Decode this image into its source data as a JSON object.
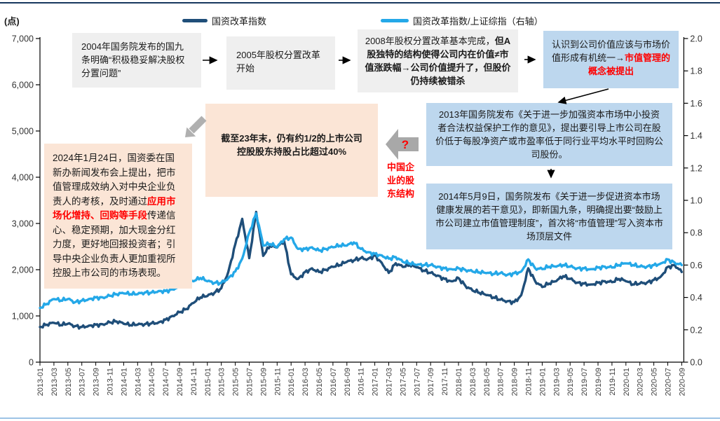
{
  "figure": {
    "unit_label": "(点)",
    "colors": {
      "dark_series": "#1f4e79",
      "light_series": "#24a8e8",
      "gray_box": "#efefef",
      "blue_box": "#bdd7ee",
      "peach_box": "#fbe5d6",
      "highlight_red": "#ff0000",
      "top_rule": "#17375e",
      "bottom_rule": "#9dc3e6"
    }
  },
  "annotations": {
    "box_2004": {
      "segments": [
        {
          "t": "2004年国务院发布的国九条明确“积极稳妥解决股权分置问题”",
          "c": ""
        }
      ]
    },
    "box_2005": {
      "segments": [
        {
          "t": "2005年股权分置改革开始",
          "c": ""
        }
      ]
    },
    "box_2008": {
      "segments": [
        {
          "t": "2008年股权分置改革基本完成，",
          "c": ""
        },
        {
          "t": "但A股独特的结构使得公司内在价值≠市值涨跌幅→公司价值提升了，但股价仍持续被错杀",
          "c": "b"
        }
      ]
    },
    "box_concept": {
      "segments": [
        {
          "t": "认识到公司价值应该与市场价值形成有机统一→",
          "c": ""
        },
        {
          "t": "市值管理的概念被提出",
          "c": "rb"
        }
      ]
    },
    "box_2013": {
      "segments": [
        {
          "t": "2013年国务院发布《关于进一步加强资本市场中小投资者合法权益保护工作的意见》，提出要引导上市公司在股价低于每股净资产或市盈率低于同行业平均水平时回购公司股份。",
          "c": ""
        }
      ]
    },
    "box_2014": {
      "segments": [
        {
          "t": "2014年5月9日，国务院发布《关于进一步促进资本市场健康发展的若干意见》，即新国九条，明确提出要“鼓励上市公司建立市值管理制度”，首次将“市值管理”写入资本市场顶层文件",
          "c": ""
        }
      ]
    },
    "box_holders": {
      "segments": [
        {
          "t": "截至23年末，仍有约1/2的上市公司控股股东持股占比超过40%",
          "c": "b"
        }
      ]
    },
    "box_2024": {
      "segments": [
        {
          "t": "2024年1月24日，国资委在国新办新闻发布会上提出，把市值管理成效纳入对中央企业负责人的考核，及时通过",
          "c": ""
        },
        {
          "t": "应用市场化增持、回购等手段",
          "c": "rb"
        },
        {
          "t": "传递信心、稳定预期，加大现金分红力度，更好地回报投资者；引导中央企业负责人更加重视所控股上市公司的市场表现。",
          "c": ""
        }
      ]
    },
    "question_mark": "?",
    "shareholder_label": "中国企业的股东结构"
  },
  "chart_data": {
    "type": "line",
    "title": "",
    "x_tick_step": 2,
    "x": [
      "2013-01",
      "2013-02",
      "2013-03",
      "2013-04",
      "2013-05",
      "2013-06",
      "2013-07",
      "2013-08",
      "2013-09",
      "2013-10",
      "2013-11",
      "2013-12",
      "2014-01",
      "2014-02",
      "2014-03",
      "2014-04",
      "2014-05",
      "2014-06",
      "2014-07",
      "2014-08",
      "2014-09",
      "2014-10",
      "2014-11",
      "2014-12",
      "2015-01",
      "2015-02",
      "2015-03",
      "2015-04",
      "2015-05",
      "2015-06",
      "2015-07",
      "2015-08",
      "2015-09",
      "2015-10",
      "2015-11",
      "2015-12",
      "2016-01",
      "2016-02",
      "2016-03",
      "2016-04",
      "2016-05",
      "2016-06",
      "2016-07",
      "2016-08",
      "2016-09",
      "2016-10",
      "2016-11",
      "2016-12",
      "2017-01",
      "2017-02",
      "2017-03",
      "2017-04",
      "2017-05",
      "2017-06",
      "2017-07",
      "2017-08",
      "2017-09",
      "2017-10",
      "2017-11",
      "2017-12",
      "2018-01",
      "2018-02",
      "2018-03",
      "2018-04",
      "2018-05",
      "2018-06",
      "2018-07",
      "2018-08",
      "2018-09",
      "2018-10",
      "2018-11",
      "2018-12",
      "2019-01",
      "2019-02",
      "2019-03",
      "2019-04",
      "2019-05",
      "2019-06",
      "2019-07",
      "2019-08",
      "2019-09",
      "2019-10",
      "2019-11",
      "2019-12",
      "2020-01",
      "2020-02",
      "2020-03",
      "2020-04",
      "2020-05",
      "2020-06",
      "2020-07",
      "2020-08",
      "2020-09"
    ],
    "series": [
      {
        "name": "国资改革指数",
        "axis": "left",
        "color": "#1f4e79",
        "values": [
          760,
          810,
          850,
          800,
          830,
          780,
          760,
          790,
          810,
          820,
          860,
          880,
          830,
          800,
          810,
          820,
          840,
          860,
          920,
          1000,
          1080,
          1150,
          1280,
          1400,
          1430,
          1500,
          1600,
          1950,
          2550,
          3100,
          2250,
          3250,
          2300,
          2520,
          2480,
          2620,
          1900,
          1800,
          1950,
          2030,
          1950,
          2000,
          2060,
          2100,
          2170,
          2200,
          2250,
          2230,
          2310,
          2150,
          1930,
          2140,
          2060,
          2100,
          2050,
          1980,
          1930,
          1875,
          1800,
          1750,
          1820,
          1650,
          1550,
          1500,
          1450,
          1400,
          1350,
          1320,
          1300,
          1450,
          2030,
          1750,
          1625,
          1700,
          1750,
          1860,
          1800,
          1720,
          1700,
          1680,
          1720,
          1750,
          1730,
          1800,
          1750,
          1680,
          1700,
          1720,
          1780,
          1850,
          2060,
          2100,
          1950
        ]
      },
      {
        "name": "国资改革指数/上证综指（右轴）",
        "axis": "right",
        "color": "#24a8e8",
        "values": [
          0.335,
          0.36,
          0.39,
          0.38,
          0.39,
          0.37,
          0.38,
          0.39,
          0.4,
          0.4,
          0.41,
          0.42,
          0.425,
          0.42,
          0.42,
          0.43,
          0.43,
          0.44,
          0.44,
          0.45,
          0.47,
          0.49,
          0.5,
          0.52,
          0.5,
          0.49,
          0.49,
          0.52,
          0.56,
          0.64,
          0.8,
          0.92,
          0.72,
          0.73,
          0.71,
          0.76,
          0.77,
          0.7,
          0.7,
          0.71,
          0.69,
          0.7,
          0.71,
          0.72,
          0.72,
          0.74,
          0.7,
          0.68,
          0.67,
          0.66,
          0.64,
          0.65,
          0.62,
          0.61,
          0.6,
          0.6,
          0.6,
          0.59,
          0.58,
          0.575,
          0.58,
          0.57,
          0.56,
          0.555,
          0.55,
          0.545,
          0.55,
          0.54,
          0.55,
          0.56,
          0.635,
          0.58,
          0.575,
          0.59,
          0.59,
          0.6,
          0.59,
          0.58,
          0.58,
          0.575,
          0.585,
          0.59,
          0.585,
          0.6,
          0.61,
          0.6,
          0.59,
          0.59,
          0.6,
          0.61,
          0.635,
          0.615,
          0.6
        ]
      }
    ],
    "left_axis": {
      "min": 0,
      "max": 7000,
      "step": 1000,
      "label": "(点)"
    },
    "right_axis": {
      "min": 0.0,
      "max": 2.0,
      "step": 0.2
    },
    "grid": false,
    "legend_position": "top"
  }
}
